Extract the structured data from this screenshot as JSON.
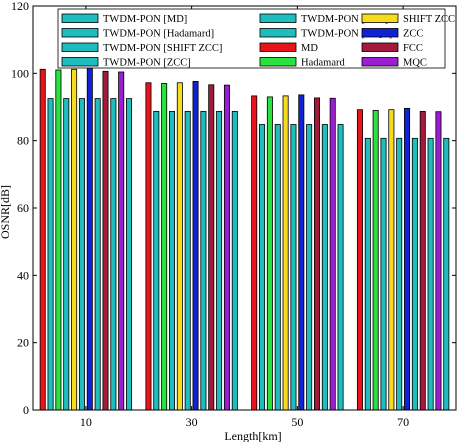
{
  "chart_data": {
    "type": "bar",
    "title": "",
    "xlabel": "Length[km]",
    "ylabel": "OSNR[dB]",
    "ylim": [
      0,
      120
    ],
    "yticks": [
      0,
      20,
      40,
      60,
      80,
      100,
      120
    ],
    "grid": false,
    "legend_position": "top",
    "categories": [
      "10",
      "30",
      "50",
      "70"
    ],
    "series": [
      {
        "name": "TWDM-PON [MD]",
        "color": "#1fbdbd",
        "values": [
          92.5,
          88.7,
          84.8,
          80.7
        ]
      },
      {
        "name": "TWDM-PON [Hadamard]",
        "color": "#1fbdbd",
        "values": [
          92.5,
          88.7,
          84.8,
          80.7
        ]
      },
      {
        "name": "TWDM-PON [SHIFT ZCC]",
        "color": "#1fbdbd",
        "values": [
          92.5,
          88.7,
          84.8,
          80.7
        ]
      },
      {
        "name": "TWDM-PON [ZCC]",
        "color": "#1fbdbd",
        "values": [
          92.5,
          88.7,
          84.8,
          80.7
        ]
      },
      {
        "name": "TWDM-PON [FCC]",
        "color": "#1fbdbd",
        "values": [
          92.5,
          88.7,
          84.8,
          80.7
        ]
      },
      {
        "name": "TWDM-PON [MQC]",
        "color": "#1fbdbd",
        "values": [
          92.5,
          88.7,
          84.8,
          80.7
        ]
      },
      {
        "name": "MD",
        "color": "#e8141b",
        "values": [
          101.2,
          97.2,
          93.3,
          89.2
        ]
      },
      {
        "name": "Hadamard",
        "color": "#29e23f",
        "values": [
          101.0,
          97.0,
          93.0,
          89.0
        ]
      },
      {
        "name": "SHIFT ZCC",
        "color": "#f7dc1e",
        "values": [
          101.2,
          97.2,
          93.3,
          89.2
        ]
      },
      {
        "name": "ZCC",
        "color": "#1022d6",
        "values": [
          101.6,
          97.6,
          93.6,
          89.6
        ]
      },
      {
        "name": "FCC",
        "color": "#a41a3c",
        "values": [
          100.6,
          96.6,
          92.7,
          88.7
        ]
      },
      {
        "name": "MQC",
        "color": "#9b1fd0",
        "values": [
          100.4,
          96.5,
          92.6,
          88.6
        ]
      }
    ],
    "bar_order": [
      "MD",
      "TWDM-PON [MD]",
      "Hadamard",
      "TWDM-PON [Hadamard]",
      "SHIFT ZCC",
      "TWDM-PON [SHIFT ZCC]",
      "ZCC",
      "TWDM-PON [ZCC]",
      "FCC",
      "TWDM-PON [FCC]",
      "MQC",
      "TWDM-PON [MQC]"
    ]
  }
}
